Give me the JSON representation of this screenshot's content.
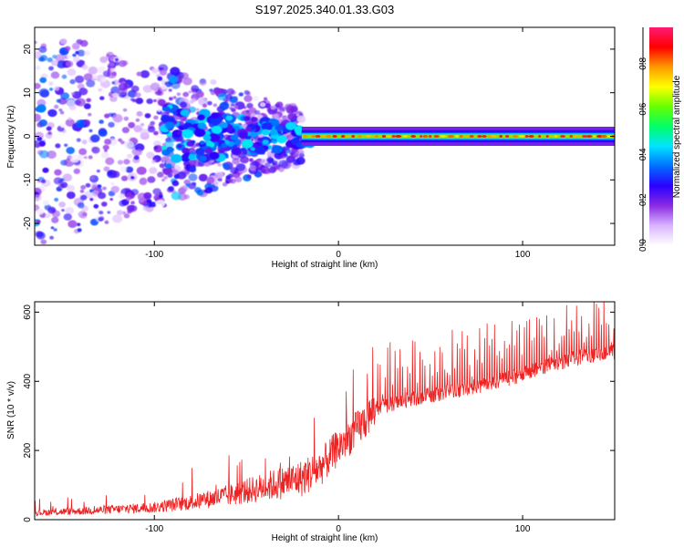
{
  "figure_title": "S197.2025.340.01.33.G03",
  "chart_data": [
    {
      "type": "heatmap",
      "title": "S197.2025.340.01.33.G03",
      "xlabel": "Height of straight line (km)",
      "ylabel": "Frequency (Hz)",
      "xlim": [
        -165,
        150
      ],
      "ylim": [
        -25,
        25
      ],
      "xticks": [
        -100,
        0,
        100
      ],
      "xtick_labels": [
        "-100",
        "0",
        "100"
      ],
      "yticks": [
        -20,
        -10,
        0,
        10,
        20
      ],
      "ytick_labels": [
        "-20",
        "-10",
        "0",
        "10",
        "20"
      ],
      "colorbar": {
        "label": "Normalized spectral amplitude",
        "range": [
          0,
          0.96
        ],
        "ticks": [
          0.0,
          0.2,
          0.4,
          0.6,
          0.8
        ],
        "tick_labels": [
          "0.0",
          "0.2",
          "0.4",
          "0.6",
          "0.8"
        ],
        "colormap": [
          "#ffffff",
          "#d9b3ff",
          "#8a2be2",
          "#2a00ff",
          "#0070ff",
          "#00e5ff",
          "#00ff66",
          "#66ff00",
          "#ffff00",
          "#ff9900",
          "#ff0000",
          "#ff1a75"
        ]
      },
      "description_ridge": {
        "ridge_frequency_hz": 0,
        "ridge_start_km": -20,
        "ridge_peak_amplitude": 0.9,
        "scatter_region_km": [
          -165,
          -20
        ],
        "scatter_spread_hz": 25
      }
    },
    {
      "type": "line",
      "xlabel": "Height of straight line (km)",
      "ylabel": "SNR (10 * v/v)",
      "xlim": [
        -165,
        150
      ],
      "ylim": [
        0,
        630
      ],
      "xticks": [
        -100,
        0,
        100
      ],
      "xtick_labels": [
        "-100",
        "0",
        "100"
      ],
      "yticks": [
        0,
        200,
        400,
        600
      ],
      "ytick_labels": [
        "0",
        "200",
        "400",
        "600"
      ],
      "series": [
        {
          "name": "SNR",
          "color": "#ee2222",
          "x": [
            -165,
            -140,
            -120,
            -100,
            -80,
            -60,
            -40,
            -20,
            -10,
            0,
            10,
            20,
            40,
            60,
            80,
            100,
            120,
            140,
            150
          ],
          "values": [
            20,
            25,
            30,
            35,
            50,
            70,
            95,
            120,
            150,
            210,
            260,
            320,
            350,
            370,
            390,
            420,
            455,
            480,
            485
          ]
        }
      ]
    }
  ]
}
